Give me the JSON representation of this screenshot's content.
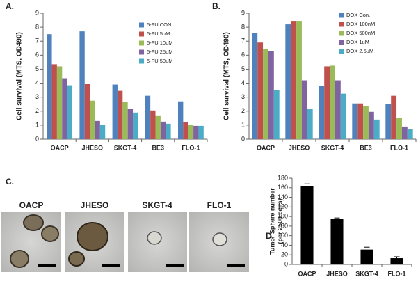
{
  "chart_data": [
    {
      "type": "bar",
      "panel_label": "A.",
      "ylabel": "Cell survival (MTS, OD490)",
      "categories": [
        "OACP",
        "JHESO",
        "SKGT-4",
        "BE3",
        "FLO-1"
      ],
      "series": [
        {
          "name": "5-FU CON.",
          "color": "#4f81bd",
          "values": [
            7.5,
            7.7,
            3.9,
            3.1,
            2.7
          ]
        },
        {
          "name": "5-FU 5uM",
          "color": "#c0504d",
          "values": [
            5.35,
            3.95,
            3.45,
            2.05,
            1.2
          ]
        },
        {
          "name": "5-FU 10uM",
          "color": "#9bbb59",
          "values": [
            5.2,
            2.75,
            2.65,
            1.7,
            1.0
          ]
        },
        {
          "name": "5-FU 25uM",
          "color": "#8064a2",
          "values": [
            4.35,
            1.3,
            2.15,
            1.25,
            0.95
          ]
        },
        {
          "name": "5-FU 50uM",
          "color": "#4bacc6",
          "values": [
            3.85,
            1.0,
            1.9,
            1.1,
            0.95
          ]
        }
      ],
      "ylim": [
        0,
        9
      ],
      "yticks": [
        0,
        1,
        2,
        3,
        4,
        5,
        6,
        7,
        8,
        9
      ],
      "grid": false,
      "legend": "upper right"
    },
    {
      "type": "bar",
      "panel_label": "B.",
      "ylabel": "Cell survival (MTS, OD490)",
      "categories": [
        "OACP",
        "JHESO",
        "SKGT-4",
        "BE3",
        "FLO-1"
      ],
      "series": [
        {
          "name": "DOX Con.",
          "color": "#4f81bd",
          "values": [
            7.6,
            8.2,
            3.8,
            2.55,
            2.5
          ]
        },
        {
          "name": "DOX  100nM",
          "color": "#c0504d",
          "values": [
            6.9,
            8.45,
            5.2,
            2.55,
            3.1
          ]
        },
        {
          "name": "DOX 500nM",
          "color": "#9bbb59",
          "values": [
            6.45,
            8.45,
            5.25,
            2.35,
            1.5
          ]
        },
        {
          "name": "DOX 1uM",
          "color": "#8064a2",
          "values": [
            6.3,
            4.2,
            4.2,
            1.95,
            0.9
          ]
        },
        {
          "name": "DOX 2.5uM",
          "color": "#4bacc6",
          "values": [
            3.5,
            2.15,
            3.25,
            1.4,
            0.7
          ]
        }
      ],
      "ylim": [
        0,
        9
      ],
      "yticks": [
        0,
        1,
        2,
        3,
        4,
        5,
        6,
        7,
        8,
        9
      ],
      "grid": false,
      "legend": "upper right"
    },
    {
      "type": "errorbar",
      "panel_label": "D.",
      "ylabel": [
        "Tumor Sphere number",
        "(per 2500 cells)"
      ],
      "categories": [
        "OACP",
        "JHESO",
        "SKGT-4",
        "FLO-1"
      ],
      "values": [
        163,
        95,
        31,
        13
      ],
      "errors": [
        5,
        2,
        5,
        3
      ],
      "color": "#000000",
      "ylim": [
        0,
        180
      ],
      "yticks": [
        0,
        20,
        40,
        60,
        80,
        100,
        120,
        140,
        160,
        180
      ],
      "grid": false
    }
  ],
  "images": {
    "panel_label": "C.",
    "captions": [
      "OACP",
      "JHESO",
      "SKGT-4",
      "FLO-1"
    ]
  }
}
